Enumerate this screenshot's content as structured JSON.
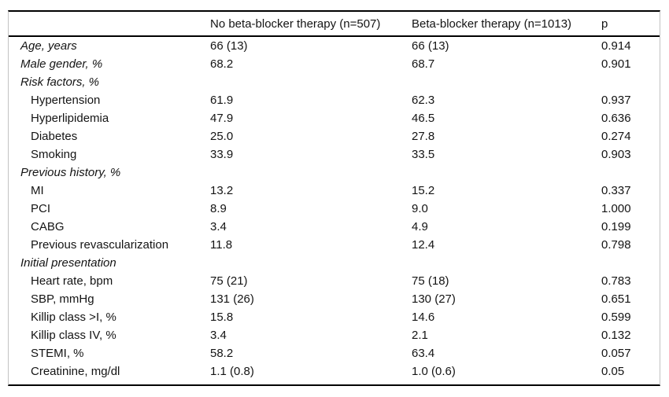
{
  "table": {
    "columns": [
      "",
      "No beta-blocker therapy (n=507)",
      "Beta-blocker therapy (n=1013)",
      "p"
    ],
    "rows": [
      {
        "label": "Age, years",
        "variant": "italic",
        "no_bb": "66 (13)",
        "bb": "66 (13)",
        "p": "0.914"
      },
      {
        "label": "Male gender, %",
        "variant": "italic",
        "no_bb": "68.2",
        "bb": "68.7",
        "p": "0.901"
      },
      {
        "label": "Risk factors, %",
        "variant": "italic",
        "no_bb": "",
        "bb": "",
        "p": ""
      },
      {
        "label": "Hypertension",
        "variant": "indent",
        "no_bb": "61.9",
        "bb": "62.3",
        "p": "0.937"
      },
      {
        "label": "Hyperlipidemia",
        "variant": "indent",
        "no_bb": "47.9",
        "bb": "46.5",
        "p": "0.636"
      },
      {
        "label": "Diabetes",
        "variant": "indent",
        "no_bb": "25.0",
        "bb": "27.8",
        "p": "0.274"
      },
      {
        "label": "Smoking",
        "variant": "indent",
        "no_bb": "33.9",
        "bb": "33.5",
        "p": "0.903"
      },
      {
        "label": "Previous history, %",
        "variant": "italic",
        "no_bb": "",
        "bb": "",
        "p": ""
      },
      {
        "label": "MI",
        "variant": "indent",
        "no_bb": "13.2",
        "bb": "15.2",
        "p": "0.337"
      },
      {
        "label": "PCI",
        "variant": "indent",
        "no_bb": "8.9",
        "bb": "9.0",
        "p": "1.000"
      },
      {
        "label": "CABG",
        "variant": "indent",
        "no_bb": "3.4",
        "bb": "4.9",
        "p": "0.199"
      },
      {
        "label": "Previous revascularization",
        "variant": "indent",
        "no_bb": "11.8",
        "bb": "12.4",
        "p": "0.798"
      },
      {
        "label": "Initial presentation",
        "variant": "italic",
        "no_bb": "",
        "bb": "",
        "p": ""
      },
      {
        "label": "Heart rate, bpm",
        "variant": "indent",
        "no_bb": "75 (21)",
        "bb": "75 (18)",
        "p": "0.783"
      },
      {
        "label": "SBP, mmHg",
        "variant": "indent",
        "no_bb": "131 (26)",
        "bb": "130 (27)",
        "p": "0.651"
      },
      {
        "label": "Killip class >I, %",
        "variant": "indent",
        "no_bb": "15.8",
        "bb": "14.6",
        "p": "0.599"
      },
      {
        "label": "Killip class IV, %",
        "variant": "indent",
        "no_bb": "3.4",
        "bb": "2.1",
        "p": "0.132"
      },
      {
        "label": "STEMI, %",
        "variant": "indent",
        "no_bb": "58.2",
        "bb": "63.4",
        "p": "0.057"
      },
      {
        "label": "Creatinine, mg/dl",
        "variant": "indent",
        "no_bb": "1.1 (0.8)",
        "bb": "1.0 (0.6)",
        "p": "0.05"
      }
    ]
  },
  "colors": {
    "rule_black": "#000000",
    "frame_gray": "#c2c2c2",
    "text": "#141414",
    "background": "#ffffff"
  }
}
